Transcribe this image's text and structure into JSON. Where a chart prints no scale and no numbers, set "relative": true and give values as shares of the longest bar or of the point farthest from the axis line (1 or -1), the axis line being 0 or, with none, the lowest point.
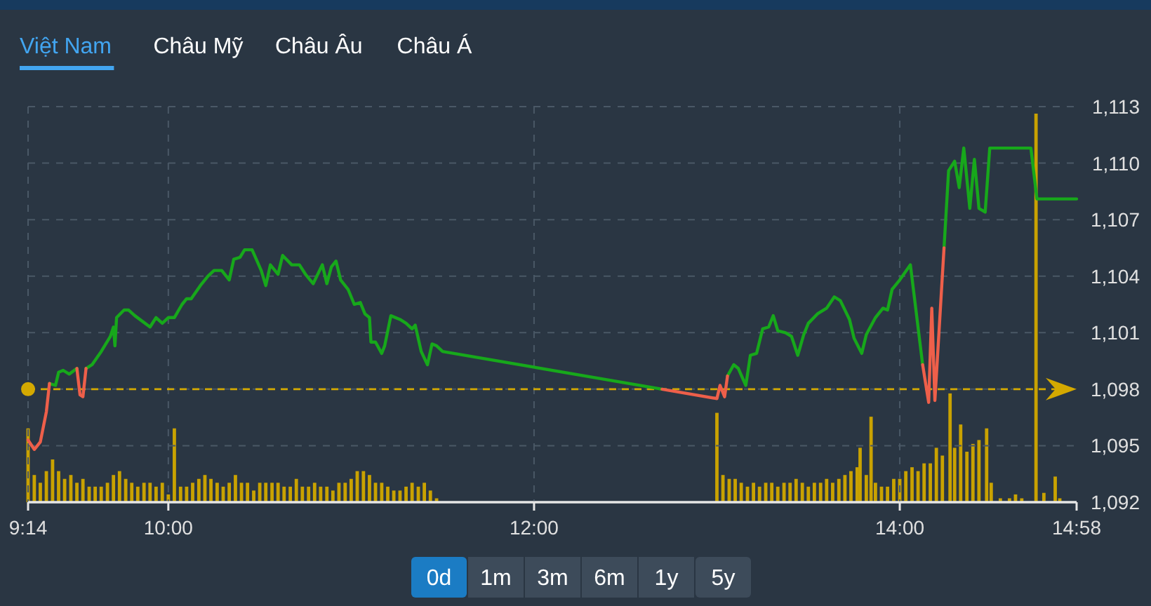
{
  "chart_data": [
    {
      "type": "other",
      "annotations": [
        "Việt Nam",
        "Châu Mỹ",
        "Châu Âu",
        "Châu Á"
      ]
    },
    {
      "type": "line",
      "xlim": [
        9.233,
        14.967
      ],
      "ylim": [
        1092,
        1113
      ],
      "xticks": [
        {
          "value": 9.233,
          "label": "9:14"
        },
        {
          "value": 10,
          "label": "10:00"
        },
        {
          "value": 12,
          "label": "12:00"
        },
        {
          "value": 14,
          "label": "14:00"
        },
        {
          "value": 14.967,
          "label": "14:58"
        }
      ],
      "yticks": [
        {
          "value": 1092,
          "label": "1,092"
        },
        {
          "value": 1095,
          "label": "1,095"
        },
        {
          "value": 1098,
          "label": "1,098"
        },
        {
          "value": 1101,
          "label": "1,101"
        },
        {
          "value": 1104,
          "label": "1,104"
        },
        {
          "value": 1107,
          "label": "1,107"
        },
        {
          "value": 1110,
          "label": "1,110"
        },
        {
          "value": 1113,
          "label": "1,113"
        }
      ],
      "grid": true,
      "line_style": "solid",
      "ref_lines": [
        {
          "axis": "y",
          "value": 1098,
          "color": "#d4a900",
          "line_style": "dashed"
        }
      ],
      "series": [
        {
          "color": "#17a81b",
          "x": [
            9.35,
            9.383,
            9.4,
            9.425,
            9.458,
            9.5,
            9.517,
            9.533,
            9.55,
            9.583,
            9.633,
            9.683,
            9.7,
            9.708,
            9.717,
            9.758,
            9.783,
            9.817,
            9.9,
            9.933,
            9.967,
            10,
            10.033,
            10.075,
            10.1,
            10.125,
            10.175,
            10.217,
            10.25,
            10.292,
            10.333,
            10.358,
            10.392,
            10.417,
            10.458,
            10.508,
            10.533,
            10.558,
            10.6,
            10.625,
            10.675,
            10.717,
            10.75,
            10.792,
            10.842,
            10.867,
            10.892,
            10.917,
            10.942,
            10.983,
            11.017,
            11.05,
            11.075,
            11.1,
            11.108,
            11.133,
            11.167,
            11.183,
            11.217,
            11.267,
            11.3,
            11.333,
            11.35,
            11.383,
            11.417,
            11.442,
            11.467,
            11.5,
            12.7,
            13,
            13.017,
            13.042,
            13.058,
            13.092,
            13.117,
            13.158,
            13.183,
            13.217,
            13.25,
            13.283,
            13.308,
            13.333,
            13.375,
            13.408,
            13.442,
            13.475,
            13.5,
            13.55,
            13.6,
            13.642,
            13.675,
            13.725,
            13.75,
            13.792,
            13.817,
            13.867,
            13.908,
            13.933,
            13.958,
            14,
            14.058,
            14.125,
            14.158,
            14.175,
            14.192,
            14.242,
            14.267,
            14.3,
            14.325,
            14.35,
            14.383,
            14.408,
            14.433,
            14.467,
            14.492,
            14.717,
            14.75,
            14.967
          ],
          "values": [
            1098.3,
            1098.2,
            1098.9,
            1099.0,
            1098.8,
            1099.1,
            null,
            null,
            1099.1,
            1099.3,
            1100.0,
            1100.8,
            1101.3,
            1100.3,
            1101.8,
            1102.2,
            1102.2,
            1101.9,
            1101.3,
            1101.8,
            1101.5,
            1101.8,
            1101.8,
            1102.5,
            1102.8,
            1102.8,
            1103.5,
            1104.0,
            1104.3,
            1104.3,
            1103.8,
            1104.9,
            1105.0,
            1105.4,
            1105.4,
            1104.3,
            1103.5,
            1104.6,
            1104.1,
            1105.1,
            1104.6,
            1104.6,
            1104.1,
            1103.6,
            1104.6,
            1103.6,
            1104.5,
            1104.8,
            1103.8,
            1103.3,
            1102.5,
            1102.6,
            1102.0,
            1101.8,
            1100.5,
            1100.5,
            1099.9,
            1100.3,
            1101.9,
            1101.7,
            1101.5,
            1101.2,
            1101.4,
            1100.0,
            1099.3,
            1100.4,
            1100.3,
            1100.0,
            1098.0,
            null,
            null,
            null,
            1098.7,
            1099.3,
            1099.1,
            1098.2,
            1099.8,
            1099.9,
            1101.2,
            1101.3,
            1101.9,
            1101.1,
            1101.0,
            1100.8,
            1099.8,
            1100.9,
            1101.5,
            1102.0,
            1102.3,
            1102.9,
            1102.7,
            1101.7,
            1100.7,
            1099.9,
            1100.9,
            1101.8,
            1102.3,
            1102.2,
            1103.3,
            1103.8,
            1104.6,
            1099.3,
            null,
            null,
            null,
            1105.5,
            1109.6,
            1110.1,
            1108.7,
            1110.8,
            1107.6,
            1110.2,
            1107.6,
            1107.4,
            1110.8,
            1110.8,
            1108.1,
            1108.1
          ]
        },
        {
          "color": "#ee5f4a",
          "x": [
            9.233,
            9.267,
            9.3,
            9.333,
            9.35,
            9.4,
            9.5,
            9.517,
            9.533,
            9.55,
            9.6,
            12.7,
            13,
            13.017,
            13.042,
            13.058,
            13.1,
            14.125,
            14.158,
            14.175,
            14.192,
            14.242
          ],
          "values": [
            1095.3,
            1094.8,
            1095.2,
            1096.8,
            1098.3,
            null,
            1099.1,
            1097.7,
            1097.6,
            1099.1,
            null,
            1098.0,
            1097.5,
            1098.2,
            1097.6,
            1098.7,
            null,
            1099.3,
            1097.3,
            1102.3,
            1097.4,
            1105.5
          ]
        }
      ]
    },
    {
      "type": "bar",
      "relative": true,
      "xlim": [
        9.233,
        14.967
      ],
      "color": "#c9a200",
      "x": [
        9.233,
        9.267,
        9.3,
        9.333,
        9.367,
        9.4,
        9.433,
        9.467,
        9.5,
        9.533,
        9.567,
        9.6,
        9.633,
        9.667,
        9.7,
        9.733,
        9.767,
        9.8,
        9.833,
        9.867,
        9.9,
        9.933,
        9.967,
        10,
        10.033,
        10.067,
        10.1,
        10.133,
        10.167,
        10.2,
        10.233,
        10.267,
        10.3,
        10.333,
        10.367,
        10.4,
        10.433,
        10.467,
        10.5,
        10.533,
        10.567,
        10.6,
        10.633,
        10.667,
        10.7,
        10.733,
        10.767,
        10.8,
        10.833,
        10.867,
        10.9,
        10.933,
        10.967,
        11,
        11.033,
        11.067,
        11.1,
        11.133,
        11.167,
        11.2,
        11.233,
        11.267,
        11.3,
        11.333,
        11.367,
        11.4,
        11.433,
        11.467,
        13,
        13.033,
        13.067,
        13.1,
        13.133,
        13.167,
        13.2,
        13.233,
        13.267,
        13.3,
        13.333,
        13.367,
        13.4,
        13.433,
        13.467,
        13.5,
        13.533,
        13.567,
        13.6,
        13.633,
        13.667,
        13.7,
        13.733,
        13.767,
        13.783,
        13.817,
        13.843,
        13.867,
        13.9,
        13.933,
        13.967,
        14,
        14.033,
        14.067,
        14.1,
        14.133,
        14.167,
        14.2,
        14.233,
        14.275,
        14.3,
        14.333,
        14.367,
        14.4,
        14.433,
        14.475,
        14.5,
        14.55,
        14.6,
        14.633,
        14.667,
        14.745,
        14.788,
        14.85,
        14.875
      ],
      "values": [
        0.19,
        0.07,
        0.05,
        0.08,
        0.11,
        0.08,
        0.06,
        0.07,
        0.05,
        0.06,
        0.04,
        0.04,
        0.04,
        0.05,
        0.07,
        0.08,
        0.06,
        0.05,
        0.04,
        0.05,
        0.05,
        0.04,
        0.05,
        0.02,
        0.19,
        0.04,
        0.04,
        0.05,
        0.06,
        0.07,
        0.06,
        0.05,
        0.04,
        0.05,
        0.07,
        0.05,
        0.05,
        0.03,
        0.05,
        0.05,
        0.05,
        0.05,
        0.04,
        0.04,
        0.06,
        0.04,
        0.04,
        0.05,
        0.04,
        0.04,
        0.03,
        0.05,
        0.05,
        0.06,
        0.08,
        0.08,
        0.07,
        0.05,
        0.05,
        0.04,
        0.03,
        0.03,
        0.04,
        0.05,
        0.04,
        0.05,
        0.03,
        0.01,
        0.23,
        0.07,
        0.06,
        0.06,
        0.05,
        0.04,
        0.05,
        0.04,
        0.05,
        0.05,
        0.04,
        0.05,
        0.05,
        0.06,
        0.05,
        0.04,
        0.05,
        0.05,
        0.06,
        0.05,
        0.06,
        0.07,
        0.08,
        0.09,
        0.14,
        0.07,
        0.22,
        0.05,
        0.04,
        0.04,
        0.06,
        0.06,
        0.08,
        0.09,
        0.08,
        0.1,
        0.1,
        0.14,
        0.12,
        0.28,
        0.14,
        0.2,
        0.13,
        0.15,
        0.16,
        0.19,
        0.05,
        0.01,
        0.01,
        0.02,
        0.01,
        1,
        0.024,
        0.066,
        0.01
      ]
    },
    {
      "type": "other",
      "annotations": [
        "0d",
        "1m",
        "3m",
        "6m",
        "1y",
        "5y"
      ]
    }
  ]
}
